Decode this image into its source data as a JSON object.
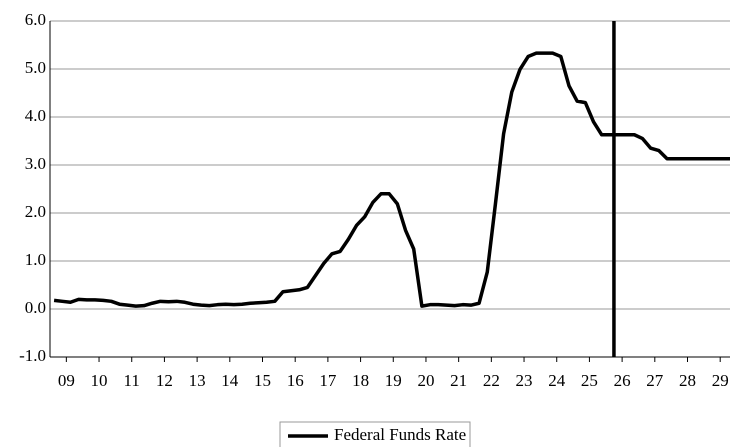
{
  "chart_data": {
    "type": "line",
    "x": [
      2009.125,
      2009.375,
      2009.625,
      2009.875,
      2010.125,
      2010.375,
      2010.625,
      2010.875,
      2011.125,
      2011.375,
      2011.625,
      2011.875,
      2012.125,
      2012.375,
      2012.625,
      2012.875,
      2013.125,
      2013.375,
      2013.625,
      2013.875,
      2014.125,
      2014.375,
      2014.625,
      2014.875,
      2015.125,
      2015.375,
      2015.625,
      2015.875,
      2016.125,
      2016.375,
      2016.625,
      2016.875,
      2017.125,
      2017.375,
      2017.625,
      2017.875,
      2018.125,
      2018.375,
      2018.625,
      2018.875,
      2019.125,
      2019.375,
      2019.625,
      2019.875,
      2020.125,
      2020.375,
      2020.625,
      2020.875,
      2021.125,
      2021.375,
      2021.625,
      2021.875,
      2022.125,
      2022.375,
      2022.625,
      2022.875,
      2023.125,
      2023.375,
      2023.625,
      2023.875,
      2024.125,
      2024.375,
      2024.625,
      2024.875,
      2025.125,
      2025.375,
      2025.625,
      2025.875,
      2026.125,
      2026.375,
      2026.625,
      2026.875,
      2027.125,
      2027.375,
      2027.625,
      2027.875,
      2028.125,
      2028.375,
      2028.625,
      2028.875,
      2029.125,
      2029.375,
      2029.625,
      2029.875
    ],
    "series": [
      {
        "name": "Federal Funds Rate",
        "color": "#000000",
        "values": [
          0.18,
          0.16,
          0.14,
          0.2,
          0.19,
          0.19,
          0.18,
          0.16,
          0.1,
          0.08,
          0.06,
          0.07,
          0.12,
          0.16,
          0.15,
          0.16,
          0.14,
          0.1,
          0.08,
          0.07,
          0.09,
          0.1,
          0.09,
          0.1,
          0.12,
          0.13,
          0.14,
          0.16,
          0.36,
          0.38,
          0.4,
          0.45,
          0.7,
          0.95,
          1.15,
          1.2,
          1.45,
          1.74,
          1.92,
          2.22,
          2.4,
          2.4,
          2.19,
          1.64,
          1.25,
          0.06,
          0.09,
          0.09,
          0.08,
          0.07,
          0.09,
          0.08,
          0.12,
          0.77,
          2.19,
          3.65,
          4.52,
          4.99,
          5.26,
          5.33,
          5.33,
          5.33,
          5.26,
          4.65,
          4.33,
          4.3,
          3.9,
          3.63,
          3.63,
          3.63,
          3.63,
          3.63,
          3.55,
          3.35,
          3.3,
          3.13,
          3.13,
          3.13,
          3.13,
          3.13,
          3.13,
          3.13,
          3.13,
          3.13
        ]
      }
    ],
    "xlim": [
      2009,
      2029.8
    ],
    "xticks": [
      {
        "value": 2009.5,
        "label": "09"
      },
      {
        "value": 2010.5,
        "label": "10"
      },
      {
        "value": 2011.5,
        "label": "11"
      },
      {
        "value": 2012.5,
        "label": "12"
      },
      {
        "value": 2013.5,
        "label": "13"
      },
      {
        "value": 2014.5,
        "label": "14"
      },
      {
        "value": 2015.5,
        "label": "15"
      },
      {
        "value": 2016.5,
        "label": "16"
      },
      {
        "value": 2017.5,
        "label": "17"
      },
      {
        "value": 2018.5,
        "label": "18"
      },
      {
        "value": 2019.5,
        "label": "19"
      },
      {
        "value": 2020.5,
        "label": "20"
      },
      {
        "value": 2021.5,
        "label": "21"
      },
      {
        "value": 2022.5,
        "label": "22"
      },
      {
        "value": 2023.5,
        "label": "23"
      },
      {
        "value": 2024.5,
        "label": "24"
      },
      {
        "value": 2025.5,
        "label": "25"
      },
      {
        "value": 2026.5,
        "label": "26"
      },
      {
        "value": 2027.5,
        "label": "27"
      },
      {
        "value": 2028.5,
        "label": "28"
      },
      {
        "value": 2029.5,
        "label": "29"
      }
    ],
    "ylim": [
      -1,
      6
    ],
    "yticks": [
      {
        "value": -1,
        "label": "-1.0"
      },
      {
        "value": 0,
        "label": "0.0"
      },
      {
        "value": 1,
        "label": "1.0"
      },
      {
        "value": 2,
        "label": "2.0"
      },
      {
        "value": 3,
        "label": "3.0"
      },
      {
        "value": 4,
        "label": "4.0"
      },
      {
        "value": 5,
        "label": "5.0"
      },
      {
        "value": 6,
        "label": "6.0"
      }
    ],
    "grid": true,
    "vline": 2026.25,
    "legend": "bottom"
  }
}
